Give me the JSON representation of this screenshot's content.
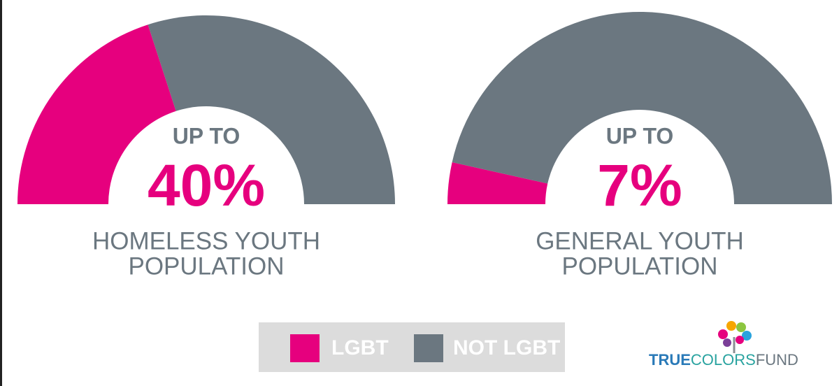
{
  "chart_data": [
    {
      "type": "pie",
      "shape": "half-donut",
      "kicker": "UP TO",
      "values": [
        40,
        60
      ],
      "value_labels": [
        "40%",
        null
      ],
      "colors": [
        "#e6007e",
        "#6b7780"
      ],
      "caption": [
        "HOMELESS YOUTH",
        "POPULATION"
      ]
    },
    {
      "type": "pie",
      "shape": "half-donut",
      "kicker": "UP TO",
      "values": [
        7,
        93
      ],
      "value_labels": [
        "7%",
        null
      ],
      "colors": [
        "#e6007e",
        "#6b7780"
      ],
      "caption": [
        "GENERAL YOUTH",
        "POPULATION"
      ]
    }
  ],
  "legend": [
    {
      "label": "LGBT",
      "color": "#e6007e"
    },
    {
      "label": "NOT LGBT",
      "color": "#6b7780"
    }
  ],
  "logo": {
    "parts": [
      "TRUE",
      "COLORS",
      "FUND"
    ]
  }
}
